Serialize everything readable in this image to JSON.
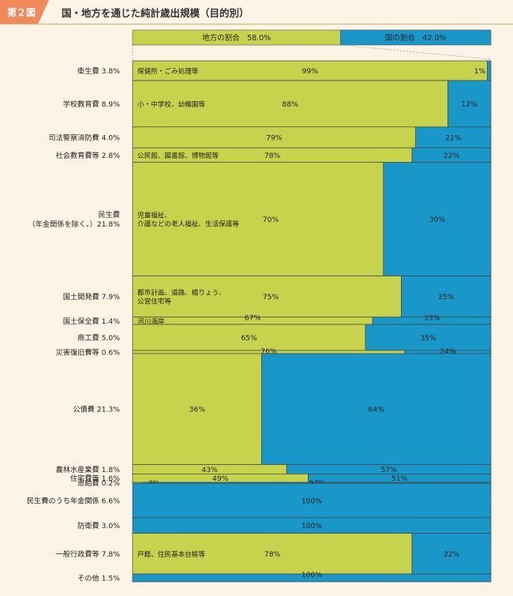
{
  "header": {
    "badge": "第２図",
    "title": "国・地方を通じた純計歳出規模（目的別）"
  },
  "colors": {
    "local": "#c8d34d",
    "national": "#1897c8",
    "background": "#fdf3e6",
    "badge": "#f08a5a"
  },
  "chart_data": {
    "type": "marimekko",
    "title": "国・地方を通じた純計歳出規模（目的別）",
    "legend": {
      "local_label": "地方の割合　58.0%",
      "national_label": "国の割合　42.0%",
      "local_pct": 58.0,
      "national_pct": 42.0
    },
    "rows": [
      {
        "label": "衛生費 3.8%",
        "share": 3.8,
        "local": 99,
        "national": 1,
        "local_text": "99%",
        "national_text": "1%",
        "note": "保健所・ごみ処理等"
      },
      {
        "label": "学校教育費 8.9%",
        "share": 8.9,
        "local": 88,
        "national": 12,
        "local_text": "88%",
        "national_text": "12%",
        "note": "小・中学校、幼稚園等"
      },
      {
        "label": "司法警察消防費 4.0%",
        "share": 4.0,
        "local": 79,
        "national": 21,
        "local_text": "79%",
        "national_text": "21%",
        "note": ""
      },
      {
        "label": "社会教育費等 2.8%",
        "share": 2.8,
        "local": 78,
        "national": 22,
        "local_text": "78%",
        "national_text": "22%",
        "note": "公民館、図書館、博物館等"
      },
      {
        "label": "民生費\n（年金関係を除く。）21.8%",
        "share": 21.8,
        "local": 70,
        "national": 30,
        "local_text": "70%",
        "national_text": "30%",
        "note": "児童福祉、\n介護などの老人福祉、生活保護等"
      },
      {
        "label": "国土開発費 7.9%",
        "share": 7.9,
        "local": 75,
        "national": 25,
        "local_text": "75%",
        "national_text": "25%",
        "note": "都市計画、道路、橋りょう、\n公営住宅等"
      },
      {
        "label": "国土保全費 1.4%",
        "share": 1.4,
        "local": 67,
        "national": 33,
        "local_text": "67%",
        "national_text": "33%",
        "note": "河川海岸"
      },
      {
        "label": "商工費 5.0%",
        "share": 5.0,
        "local": 65,
        "national": 35,
        "local_text": "65%",
        "national_text": "35%",
        "note": ""
      },
      {
        "label": "災害復旧費等 0.6%",
        "share": 0.6,
        "local": 76,
        "national": 24,
        "local_text": "76%",
        "national_text": "24%",
        "note": ""
      },
      {
        "label": "公債費 21.3%",
        "share": 21.3,
        "local": 36,
        "national": 64,
        "local_text": "36%",
        "national_text": "64%",
        "note": ""
      },
      {
        "label": "農林水産業費 1.8%",
        "share": 1.8,
        "local": 43,
        "national": 57,
        "local_text": "43%",
        "national_text": "57%",
        "note": ""
      },
      {
        "label": "住宅費等 1.6%",
        "share": 1.6,
        "local": 49,
        "national": 51,
        "local_text": "49%",
        "national_text": "51%",
        "note": ""
      },
      {
        "label": "恩給費 0.2%",
        "share": 0.2,
        "local": 3,
        "national": 97,
        "local_text": "3%",
        "national_text": "97%",
        "note": ""
      },
      {
        "label": "民生費のうち年金関係 6.6%",
        "share": 6.6,
        "local": 0,
        "national": 100,
        "local_text": "",
        "national_text": "100%",
        "note": ""
      },
      {
        "label": "防衛費 3.0%",
        "share": 3.0,
        "local": 0,
        "national": 100,
        "local_text": "",
        "national_text": "100%",
        "note": ""
      },
      {
        "label": "一般行政費等 7.8%",
        "share": 7.8,
        "local": 78,
        "national": 22,
        "local_text": "78%",
        "national_text": "22%",
        "note": "戸籍、住民基本台帳等"
      },
      {
        "label": "その他 1.5%",
        "share": 1.5,
        "local": 0,
        "national": 100,
        "local_text": "",
        "national_text": "100%",
        "note": ""
      }
    ]
  }
}
